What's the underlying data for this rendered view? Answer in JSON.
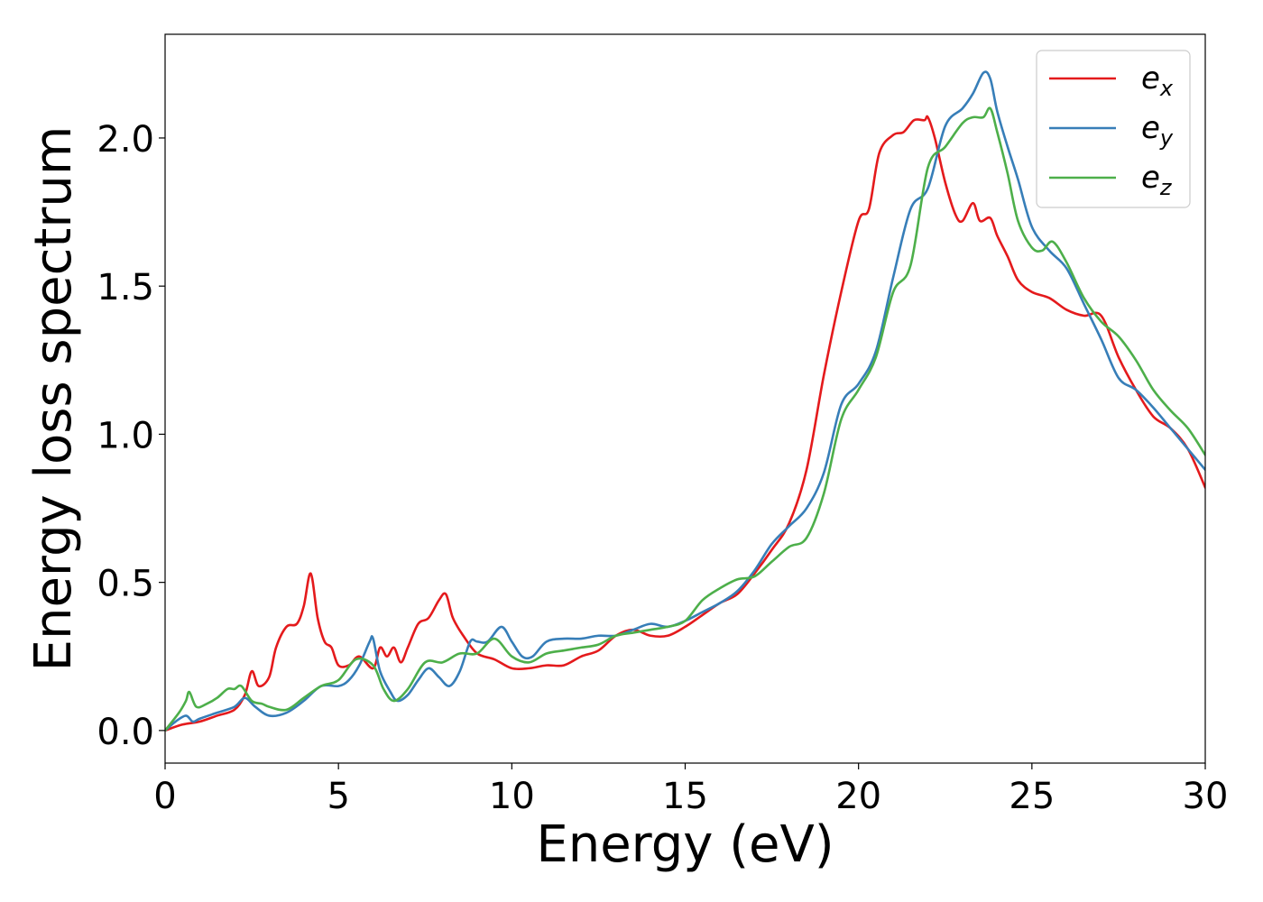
{
  "chart_data": {
    "type": "line",
    "title": "",
    "xlabel": "Energy (eV)",
    "ylabel": "Energy loss spectrum",
    "xlim": [
      0,
      30
    ],
    "ylim": [
      -0.11,
      2.35
    ],
    "xticks": [
      0,
      5,
      10,
      15,
      20,
      25,
      30
    ],
    "xtick_labels": [
      "0",
      "5",
      "10",
      "15",
      "20",
      "25",
      "30"
    ],
    "yticks": [
      0.0,
      0.5,
      1.0,
      1.5,
      2.0
    ],
    "ytick_labels": [
      "0.0",
      "0.5",
      "1.0",
      "1.5",
      "2.0"
    ],
    "grid": false,
    "legend_position": "top-right",
    "series": [
      {
        "name": "e_x",
        "legend_base": "e",
        "legend_sub": "x",
        "color": "#e41a1c",
        "x": [
          0,
          0.5,
          1.0,
          1.5,
          2.0,
          2.3,
          2.5,
          2.7,
          3.0,
          3.2,
          3.5,
          3.8,
          4.0,
          4.2,
          4.4,
          4.6,
          4.8,
          5.0,
          5.3,
          5.6,
          6.0,
          6.2,
          6.4,
          6.6,
          6.8,
          7.0,
          7.3,
          7.6,
          7.9,
          8.1,
          8.3,
          8.6,
          9.0,
          9.5,
          10.0,
          10.5,
          11.0,
          11.5,
          12.0,
          12.5,
          13.0,
          13.5,
          14.0,
          14.5,
          15.0,
          15.5,
          16.0,
          16.5,
          17.0,
          17.5,
          18.0,
          18.5,
          19.0,
          19.5,
          20.0,
          20.3,
          20.6,
          21.0,
          21.3,
          21.6,
          21.9,
          22.0,
          22.2,
          22.5,
          22.8,
          23.0,
          23.3,
          23.5,
          23.8,
          24.0,
          24.3,
          24.6,
          25.0,
          25.5,
          26.0,
          26.5,
          27.0,
          27.5,
          28.0,
          28.5,
          29.0,
          29.5,
          30.0
        ],
        "values": [
          0.0,
          0.02,
          0.03,
          0.05,
          0.07,
          0.12,
          0.2,
          0.15,
          0.18,
          0.28,
          0.35,
          0.36,
          0.42,
          0.53,
          0.38,
          0.3,
          0.28,
          0.22,
          0.22,
          0.25,
          0.21,
          0.28,
          0.25,
          0.28,
          0.23,
          0.28,
          0.36,
          0.38,
          0.44,
          0.46,
          0.38,
          0.32,
          0.26,
          0.24,
          0.21,
          0.21,
          0.22,
          0.22,
          0.25,
          0.27,
          0.32,
          0.34,
          0.32,
          0.32,
          0.35,
          0.39,
          0.43,
          0.46,
          0.53,
          0.61,
          0.7,
          0.88,
          1.2,
          1.48,
          1.72,
          1.76,
          1.95,
          2.01,
          2.02,
          2.06,
          2.06,
          2.07,
          2.0,
          1.85,
          1.74,
          1.72,
          1.78,
          1.72,
          1.73,
          1.67,
          1.6,
          1.52,
          1.48,
          1.46,
          1.42,
          1.4,
          1.4,
          1.26,
          1.15,
          1.06,
          1.02,
          0.95,
          0.82
        ]
      },
      {
        "name": "e_y",
        "legend_base": "e",
        "legend_sub": "y",
        "color": "#377eb8",
        "x": [
          0,
          0.3,
          0.6,
          0.8,
          1.0,
          1.5,
          2.0,
          2.3,
          2.6,
          3.0,
          3.5,
          4.0,
          4.5,
          5.0,
          5.3,
          5.6,
          5.9,
          6.0,
          6.2,
          6.5,
          6.7,
          7.0,
          7.3,
          7.6,
          7.9,
          8.2,
          8.5,
          8.8,
          9.0,
          9.3,
          9.7,
          10.0,
          10.3,
          10.6,
          11.0,
          11.5,
          12.0,
          12.5,
          13.0,
          13.5,
          14.0,
          14.5,
          15.0,
          15.5,
          16.0,
          16.5,
          17.0,
          17.5,
          18.0,
          18.5,
          19.0,
          19.5,
          20.0,
          20.5,
          21.0,
          21.5,
          22.0,
          22.5,
          23.0,
          23.3,
          23.6,
          23.8,
          24.0,
          24.3,
          24.6,
          25.0,
          25.5,
          26.0,
          26.5,
          27.0,
          27.5,
          28.0,
          28.5,
          29.0,
          29.5,
          30.0
        ],
        "values": [
          0.0,
          0.03,
          0.05,
          0.03,
          0.04,
          0.06,
          0.08,
          0.11,
          0.08,
          0.05,
          0.06,
          0.1,
          0.15,
          0.15,
          0.17,
          0.22,
          0.3,
          0.31,
          0.2,
          0.13,
          0.1,
          0.12,
          0.17,
          0.21,
          0.18,
          0.15,
          0.2,
          0.3,
          0.3,
          0.3,
          0.35,
          0.3,
          0.25,
          0.25,
          0.3,
          0.31,
          0.31,
          0.32,
          0.32,
          0.34,
          0.36,
          0.35,
          0.37,
          0.4,
          0.43,
          0.47,
          0.54,
          0.63,
          0.69,
          0.75,
          0.87,
          1.1,
          1.17,
          1.28,
          1.53,
          1.76,
          1.83,
          2.04,
          2.1,
          2.15,
          2.22,
          2.2,
          2.09,
          1.97,
          1.86,
          1.7,
          1.62,
          1.56,
          1.44,
          1.32,
          1.19,
          1.15,
          1.09,
          1.02,
          0.95,
          0.88
        ]
      },
      {
        "name": "e_z",
        "legend_base": "e",
        "legend_sub": "z",
        "color": "#4daf4a",
        "x": [
          0,
          0.4,
          0.6,
          0.7,
          0.9,
          1.2,
          1.5,
          1.8,
          2.0,
          2.2,
          2.5,
          2.8,
          3.0,
          3.5,
          4.0,
          4.5,
          5.0,
          5.5,
          6.0,
          6.3,
          6.6,
          7.0,
          7.5,
          8.0,
          8.5,
          9.0,
          9.5,
          10.0,
          10.5,
          11.0,
          11.5,
          12.0,
          12.5,
          13.0,
          13.5,
          14.0,
          14.5,
          15.0,
          15.5,
          16.0,
          16.5,
          17.0,
          17.5,
          18.0,
          18.5,
          19.0,
          19.5,
          20.0,
          20.5,
          21.0,
          21.5,
          22.0,
          22.5,
          23.0,
          23.3,
          23.6,
          23.8,
          24.0,
          24.3,
          24.6,
          25.0,
          25.3,
          25.6,
          26.0,
          26.5,
          27.0,
          27.5,
          28.0,
          28.5,
          29.0,
          29.5,
          30.0
        ],
        "values": [
          0.0,
          0.06,
          0.1,
          0.13,
          0.08,
          0.09,
          0.11,
          0.14,
          0.14,
          0.15,
          0.1,
          0.09,
          0.08,
          0.07,
          0.11,
          0.15,
          0.17,
          0.24,
          0.22,
          0.14,
          0.1,
          0.14,
          0.23,
          0.23,
          0.26,
          0.26,
          0.31,
          0.25,
          0.23,
          0.26,
          0.27,
          0.28,
          0.29,
          0.32,
          0.33,
          0.34,
          0.35,
          0.37,
          0.44,
          0.48,
          0.51,
          0.52,
          0.57,
          0.62,
          0.65,
          0.8,
          1.05,
          1.15,
          1.26,
          1.48,
          1.57,
          1.9,
          1.97,
          2.05,
          2.07,
          2.07,
          2.1,
          2.02,
          1.88,
          1.72,
          1.63,
          1.62,
          1.65,
          1.58,
          1.46,
          1.38,
          1.33,
          1.25,
          1.15,
          1.08,
          1.02,
          0.93
        ]
      }
    ]
  }
}
